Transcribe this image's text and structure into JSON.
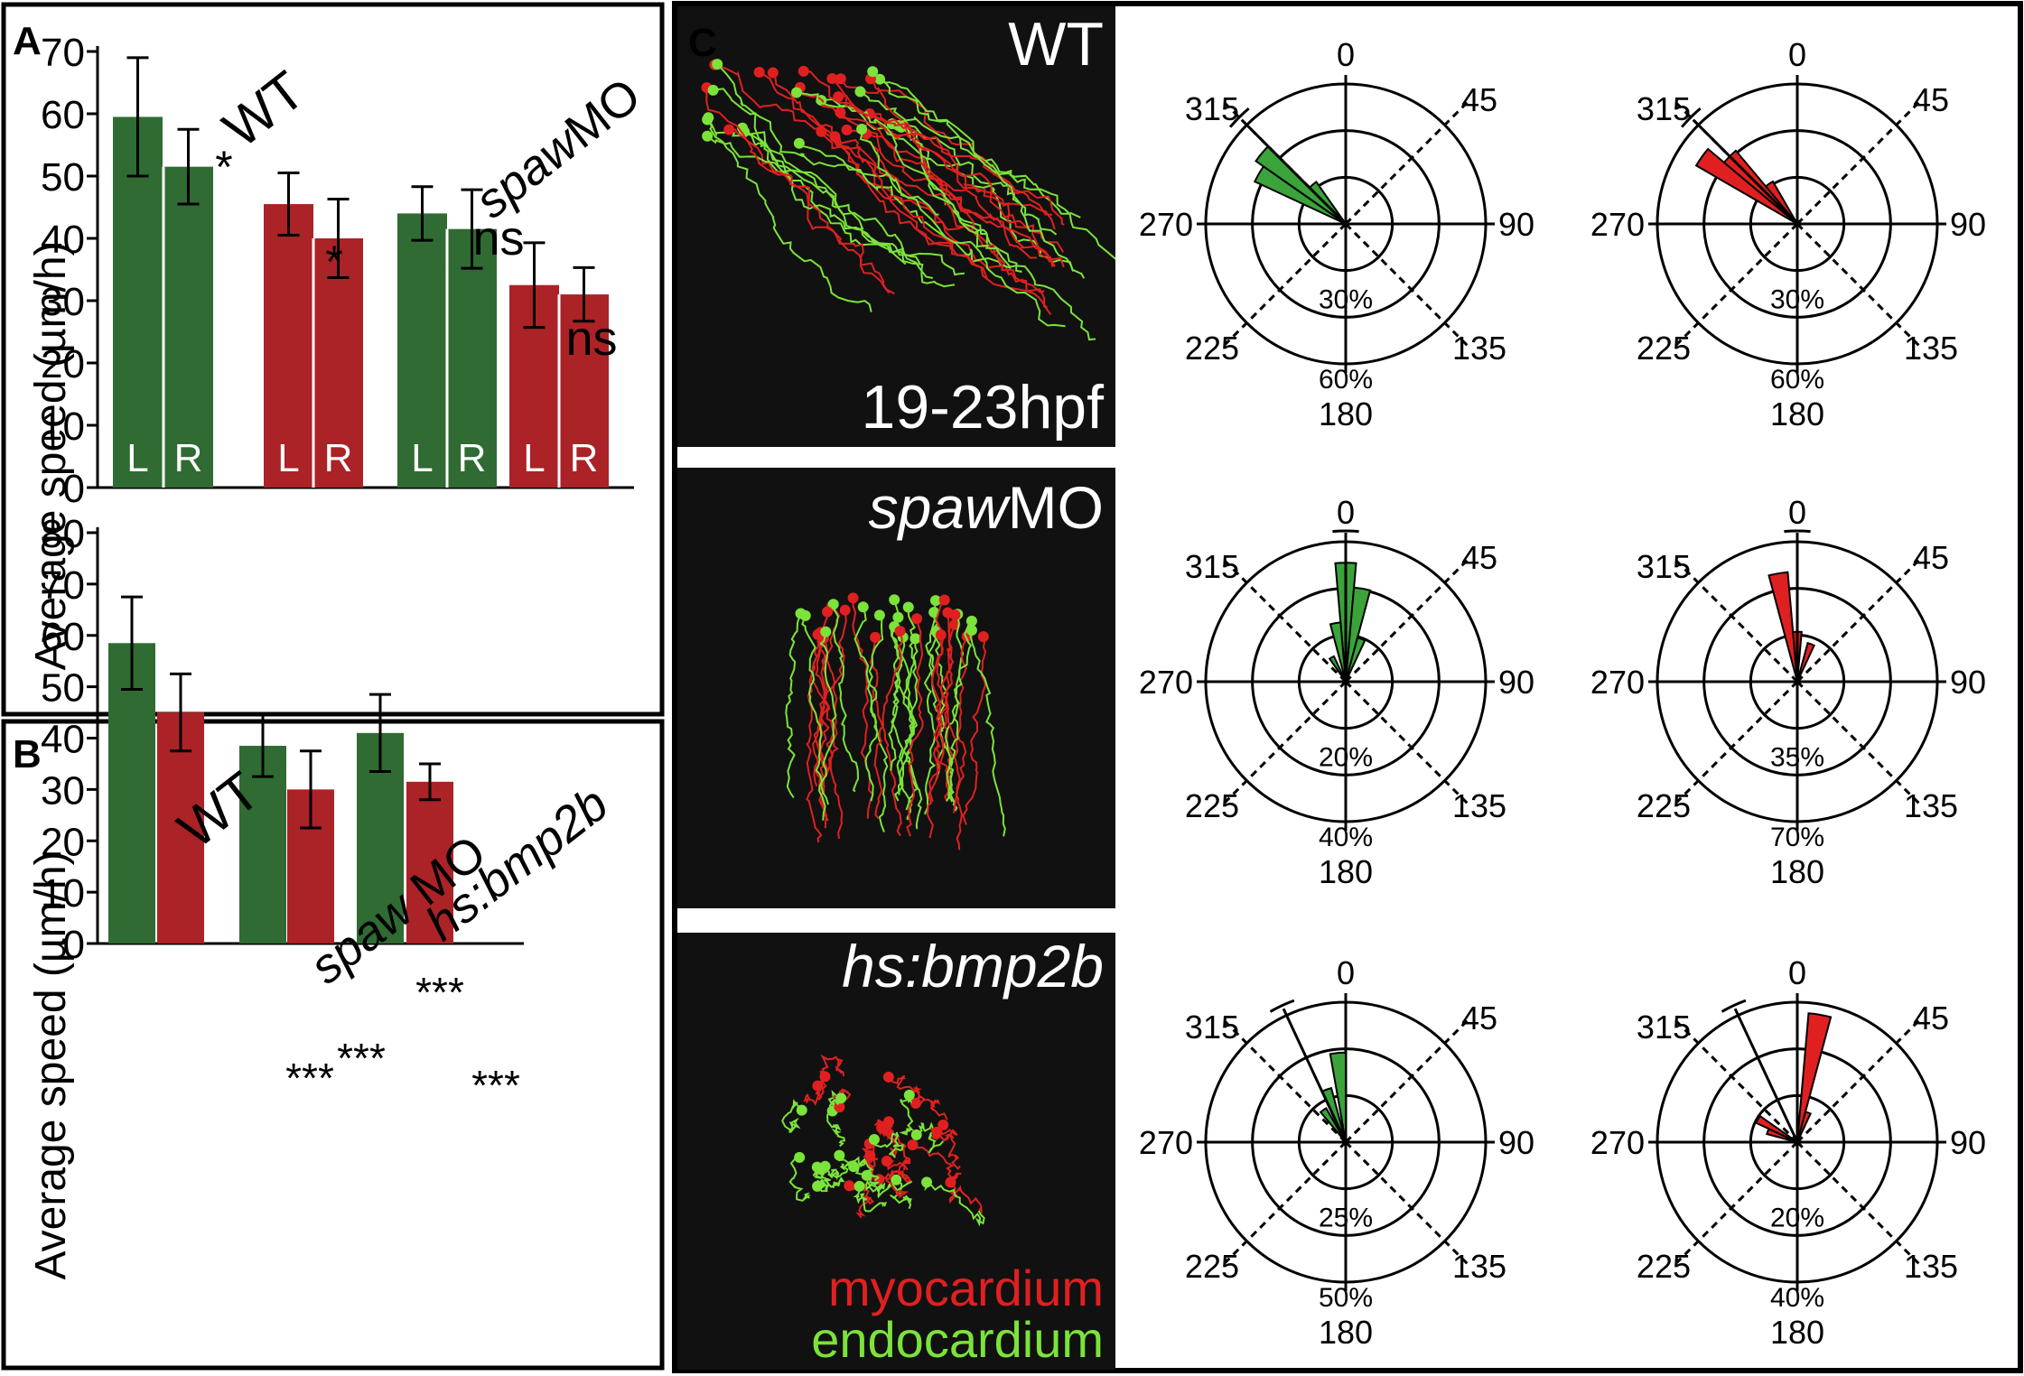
{
  "colors": {
    "green": "#2f6b33",
    "red": "#ab2227",
    "track_green": "#7be33a",
    "track_red": "#e02020",
    "dark": "#111111"
  },
  "panelA": {
    "label": "A",
    "ylabel": "Average speed (µm/h)",
    "group_labels": {
      "wt": "WT",
      "spaw_italic": "spaw",
      "spaw_rest": "MO"
    },
    "sig": {
      "wt_r_green": "*",
      "wt_r_red": "*",
      "spaw_green": "ns",
      "spaw_red": "ns"
    }
  },
  "panelB": {
    "label": "B",
    "ylabel": "Average speed (µm/h)",
    "group_labels": {
      "wt": "WT",
      "spaw_italic": "spaw",
      "spaw_rest": " MO",
      "hs": "hs:bmp2b"
    },
    "sig": {
      "spaw_green": "***",
      "spaw_red": "***",
      "hs_green": "***",
      "hs_red": "***"
    }
  },
  "panelC": {
    "label": "C",
    "images": [
      {
        "title": "WT",
        "subtitle": "19-23hpf"
      },
      {
        "title_italic": "spaw",
        "title_rest": "MO"
      },
      {
        "title_italic": "hs:bmp2b",
        "legend": [
          "myocardium",
          "endocardium"
        ]
      }
    ],
    "angle_labels": {
      "a0": "0",
      "a45": "45",
      "a90": "90",
      "a135": "135",
      "a180": "180",
      "a225": "225",
      "a270": "270",
      "a315": "315"
    },
    "rose_rings": [
      [
        "30%",
        "60%"
      ],
      [
        "30%",
        "60%"
      ],
      [
        "20%",
        "40%"
      ],
      [
        "35%",
        "70%"
      ],
      [
        "25%",
        "50%"
      ],
      [
        "20%",
        "40%"
      ]
    ]
  },
  "chart_data": [
    {
      "type": "bar",
      "panel": "A",
      "categories": [
        "L",
        "R",
        "L",
        "R",
        "L",
        "R",
        "L",
        "R"
      ],
      "ylabel": "Average speed (µm/h)",
      "ylim": [
        0,
        70
      ],
      "yticks": [
        0,
        10,
        20,
        30,
        40,
        50,
        60,
        70
      ],
      "values": [
        59.5,
        51.5,
        45.5,
        40,
        44,
        41.5,
        32.5,
        31
      ],
      "errors": [
        9.5,
        6,
        5,
        6.3,
        4.3,
        6.3,
        6.8,
        4.3
      ],
      "colors": [
        "green",
        "green",
        "red",
        "red",
        "green",
        "green",
        "red",
        "red"
      ]
    },
    {
      "type": "bar",
      "panel": "B",
      "ylabel": "Average speed (µm/h)",
      "ylim": [
        0,
        80
      ],
      "yticks": [
        0,
        10,
        20,
        30,
        40,
        50,
        60,
        70,
        80
      ],
      "values": [
        58.5,
        45,
        38.5,
        30,
        41,
        31.5
      ],
      "errors": [
        9,
        7.5,
        6,
        7.5,
        7.5,
        3.5
      ],
      "colors": [
        "green",
        "red",
        "green",
        "red",
        "green",
        "red"
      ]
    },
    {
      "type": "rose",
      "panel": "C",
      "angle_ticks": [
        0,
        45,
        90,
        135,
        180,
        225,
        270,
        315
      ],
      "plots": [
        {
          "color": "green",
          "rmax_percent": 60,
          "mean_angle": 315,
          "petals": [
            {
              "angle": 300,
              "percent": 43
            },
            {
              "angle": 310,
              "percent": 47
            },
            {
              "angle": 320,
              "percent": 22
            }
          ]
        },
        {
          "color": "red",
          "rmax_percent": 60,
          "mean_angle": 315,
          "petals": [
            {
              "angle": 305,
              "percent": 50
            },
            {
              "angle": 315,
              "percent": 41
            },
            {
              "angle": 325,
              "percent": 21
            }
          ]
        },
        {
          "color": "green",
          "rmax_percent": 40,
          "mean_angle": 0,
          "petals": [
            {
              "angle": 0,
              "percent": 34
            },
            {
              "angle": 10,
              "percent": 27
            },
            {
              "angle": 350,
              "percent": 17
            },
            {
              "angle": 330,
              "percent": 8
            },
            {
              "angle": 20,
              "percent": 13
            }
          ]
        },
        {
          "color": "red",
          "rmax_percent": 70,
          "mean_angle": 0,
          "petals": [
            {
              "angle": 350,
              "percent": 55
            },
            {
              "angle": 20,
              "percent": 20
            },
            {
              "angle": 0,
              "percent": 25
            }
          ]
        },
        {
          "color": "green",
          "rmax_percent": 50,
          "mean_angle": 335,
          "petals": [
            {
              "angle": 355,
              "percent": 32
            },
            {
              "angle": 340,
              "percent": 20
            },
            {
              "angle": 325,
              "percent": 14
            }
          ]
        },
        {
          "color": "red",
          "rmax_percent": 40,
          "mean_angle": 335,
          "petals": [
            {
              "angle": 10,
              "percent": 37
            },
            {
              "angle": 300,
              "percent": 13
            },
            {
              "angle": 290,
              "percent": 9
            },
            {
              "angle": 20,
              "percent": 9
            }
          ]
        }
      ]
    }
  ]
}
